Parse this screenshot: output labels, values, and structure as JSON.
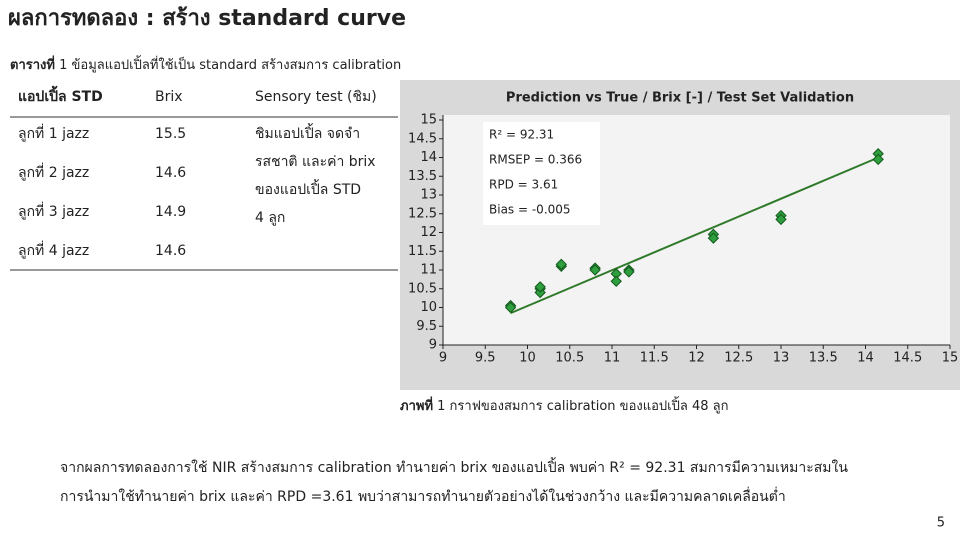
{
  "header": {
    "title": "ผลการทดลอง : สร้าง standard curve"
  },
  "table": {
    "caption_label": "ตารางที่",
    "caption_text": "1 ข้อมูลแอปเปิ้ลที่ใช้เป็น standard สร้างสมการ calibration",
    "columns": [
      "แอปเปิ้ล STD",
      "Brix",
      "Sensory test (ชิม)"
    ],
    "rows": [
      [
        "ลูกที่ 1 jazz",
        15.5
      ],
      [
        "ลูกที่ 2 jazz",
        14.6
      ],
      [
        "ลูกที่ 3 jazz",
        14.9
      ],
      [
        "ลูกที่ 4 jazz",
        14.6
      ]
    ],
    "sensory_lines": [
      "ชิมแอปเปิ้ล จดจำ",
      "รสชาติ และค่า brix",
      "ของแอปเปิ้ล STD",
      "4 ลูก"
    ]
  },
  "chart_data": {
    "type": "scatter",
    "title": "Prediction vs True / Brix [-] / Test Set Validation",
    "stats": [
      "R² = 92.31",
      "RMSEP = 0.366",
      "RPD = 3.61",
      "Bias = -0.005"
    ],
    "x": [
      9.8,
      9.8,
      10.15,
      10.15,
      10.15,
      10.4,
      10.4,
      10.8,
      10.8,
      11.05,
      11.05,
      11.2,
      11.2,
      12.2,
      12.2,
      13.0,
      13.0,
      14.15,
      14.15
    ],
    "y": [
      10.05,
      10.0,
      10.5,
      10.4,
      10.55,
      11.1,
      11.15,
      11.05,
      11.0,
      10.9,
      10.7,
      11.0,
      10.95,
      11.95,
      11.85,
      12.45,
      12.35,
      14.1,
      13.95
    ],
    "color": "#2e9e3e",
    "trendline": {
      "x": [
        9.8,
        14.1
      ],
      "y": [
        9.85,
        13.95
      ],
      "color": "#2f7a2a"
    },
    "xlim": [
      9,
      15
    ],
    "ylim": [
      9,
      15
    ],
    "xticks": [
      9,
      9.5,
      10,
      10.5,
      11,
      11.5,
      12,
      12.5,
      13,
      13.5,
      14,
      14.5,
      15
    ],
    "yticks": [
      9,
      9.5,
      10,
      10.5,
      11,
      11.5,
      12,
      12.5,
      13,
      13.5,
      14,
      14.5,
      15
    ]
  },
  "figure": {
    "caption_label": "ภาพที่",
    "caption_text": "1 กราฟของสมการ calibration ของแอปเปิ้ล 48 ลูก"
  },
  "body": {
    "lines": [
      "จากผลการทดลองการใช้ NIR สร้างสมการ calibration ทำนายค่า brix ของแอปเปิ้ล พบค่า R² = 92.31 สมการมีความเหมาะสมใน",
      "การนำมาใช้ทำนายค่า brix และค่า RPD =3.61 พบว่าสามารถทำนายตัวอย่างได้ในช่วงกว้าง และมีความคลาดเคลื่อนต่ำ"
    ]
  },
  "footer": {
    "page_number": 5
  }
}
